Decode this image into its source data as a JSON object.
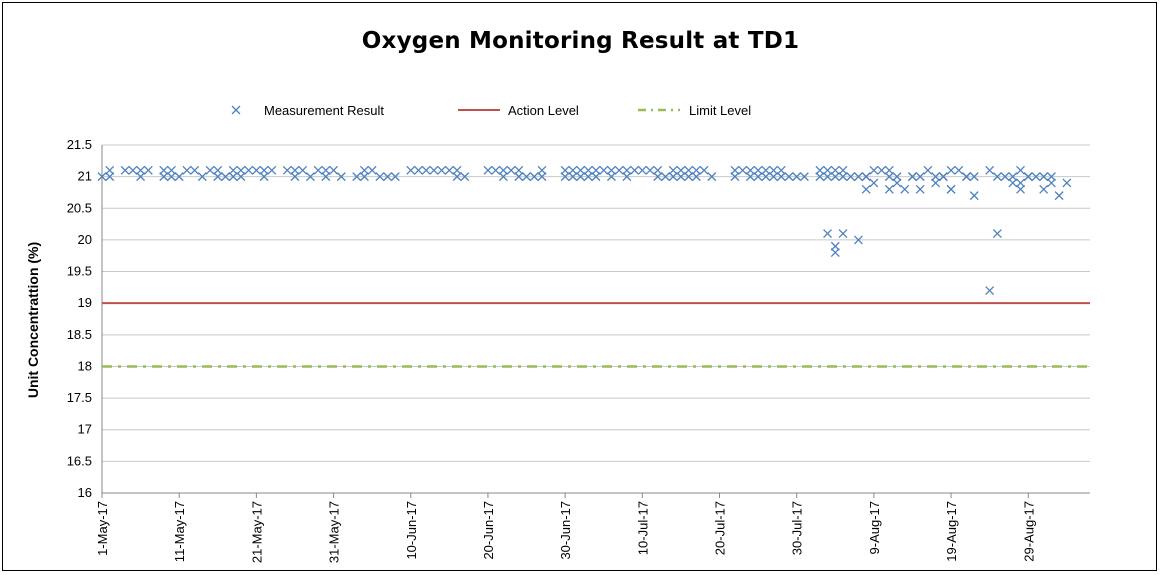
{
  "chart_data": {
    "type": "scatter",
    "title": "Oxygen Monitoring Result at TD1",
    "xlabel": "",
    "ylabel": "Unit Concentrattion (%)",
    "ylim": [
      16,
      21.5
    ],
    "yticks": [
      "16",
      "16.5",
      "17",
      "17.5",
      "18",
      "18.5",
      "19",
      "19.5",
      "20",
      "20.5",
      "21",
      "21.5"
    ],
    "xlim": [
      "1-May-17",
      "6-Sep-17"
    ],
    "xticks": [
      "1-May-17",
      "11-May-17",
      "21-May-17",
      "31-May-17",
      "10-Jun-17",
      "20-Jun-17",
      "30-Jun-17",
      "10-Jul-17",
      "20-Jul-17",
      "30-Jul-17",
      "9-Aug-17",
      "19-Aug-17",
      "29-Aug-17"
    ],
    "grid": true,
    "legend_position": "top",
    "colors": {
      "measurement": "#4f81bd",
      "action": "#c0504d",
      "limit": "#9bbb59"
    },
    "series": [
      {
        "name": "Measurement Result",
        "marker": "x",
        "points": [
          [
            "1-May-17",
            21.0
          ],
          [
            "2-May-17",
            21.1
          ],
          [
            "2-May-17",
            21.0
          ],
          [
            "4-May-17",
            21.1
          ],
          [
            "5-May-17",
            21.1
          ],
          [
            "6-May-17",
            21.0
          ],
          [
            "6-May-17",
            21.1
          ],
          [
            "7-May-17",
            21.1
          ],
          [
            "9-May-17",
            21.0
          ],
          [
            "9-May-17",
            21.1
          ],
          [
            "10-May-17",
            21.0
          ],
          [
            "10-May-17",
            21.1
          ],
          [
            "11-May-17",
            21.0
          ],
          [
            "12-May-17",
            21.1
          ],
          [
            "13-May-17",
            21.1
          ],
          [
            "14-May-17",
            21.0
          ],
          [
            "15-May-17",
            21.1
          ],
          [
            "16-May-17",
            21.1
          ],
          [
            "16-May-17",
            21.0
          ],
          [
            "17-May-17",
            21.0
          ],
          [
            "18-May-17",
            21.0
          ],
          [
            "18-May-17",
            21.1
          ],
          [
            "19-May-17",
            21.0
          ],
          [
            "19-May-17",
            21.1
          ],
          [
            "20-May-17",
            21.1
          ],
          [
            "21-May-17",
            21.1
          ],
          [
            "22-May-17",
            21.1
          ],
          [
            "22-May-17",
            21.0
          ],
          [
            "23-May-17",
            21.1
          ],
          [
            "25-May-17",
            21.1
          ],
          [
            "26-May-17",
            21.1
          ],
          [
            "26-May-17",
            21.0
          ],
          [
            "27-May-17",
            21.1
          ],
          [
            "28-May-17",
            21.0
          ],
          [
            "29-May-17",
            21.1
          ],
          [
            "30-May-17",
            21.1
          ],
          [
            "30-May-17",
            21.0
          ],
          [
            "31-May-17",
            21.1
          ],
          [
            "1-Jun-17",
            21.0
          ],
          [
            "3-Jun-17",
            21.0
          ],
          [
            "4-Jun-17",
            21.1
          ],
          [
            "4-Jun-17",
            21.0
          ],
          [
            "5-Jun-17",
            21.1
          ],
          [
            "6-Jun-17",
            21.0
          ],
          [
            "7-Jun-17",
            21.0
          ],
          [
            "8-Jun-17",
            21.0
          ],
          [
            "10-Jun-17",
            21.1
          ],
          [
            "11-Jun-17",
            21.1
          ],
          [
            "12-Jun-17",
            21.1
          ],
          [
            "13-Jun-17",
            21.1
          ],
          [
            "14-Jun-17",
            21.1
          ],
          [
            "15-Jun-17",
            21.1
          ],
          [
            "16-Jun-17",
            21.0
          ],
          [
            "16-Jun-17",
            21.1
          ],
          [
            "17-Jun-17",
            21.0
          ],
          [
            "20-Jun-17",
            21.1
          ],
          [
            "21-Jun-17",
            21.1
          ],
          [
            "22-Jun-17",
            21.1
          ],
          [
            "22-Jun-17",
            21.0
          ],
          [
            "23-Jun-17",
            21.1
          ],
          [
            "24-Jun-17",
            21.0
          ],
          [
            "24-Jun-17",
            21.1
          ],
          [
            "25-Jun-17",
            21.0
          ],
          [
            "26-Jun-17",
            21.0
          ],
          [
            "27-Jun-17",
            21.1
          ],
          [
            "27-Jun-17",
            21.0
          ],
          [
            "30-Jun-17",
            21.1
          ],
          [
            "30-Jun-17",
            21.0
          ],
          [
            "1-Jul-17",
            21.1
          ],
          [
            "1-Jul-17",
            21.0
          ],
          [
            "2-Jul-17",
            21.1
          ],
          [
            "2-Jul-17",
            21.0
          ],
          [
            "3-Jul-17",
            21.1
          ],
          [
            "3-Jul-17",
            21.0
          ],
          [
            "4-Jul-17",
            21.1
          ],
          [
            "4-Jul-17",
            21.0
          ],
          [
            "5-Jul-17",
            21.1
          ],
          [
            "6-Jul-17",
            21.0
          ],
          [
            "6-Jul-17",
            21.1
          ],
          [
            "7-Jul-17",
            21.1
          ],
          [
            "8-Jul-17",
            21.1
          ],
          [
            "8-Jul-17",
            21.0
          ],
          [
            "9-Jul-17",
            21.1
          ],
          [
            "10-Jul-17",
            21.1
          ],
          [
            "11-Jul-17",
            21.1
          ],
          [
            "12-Jul-17",
            21.1
          ],
          [
            "12-Jul-17",
            21.0
          ],
          [
            "13-Jul-17",
            21.0
          ],
          [
            "14-Jul-17",
            21.0
          ],
          [
            "14-Jul-17",
            21.1
          ],
          [
            "15-Jul-17",
            21.1
          ],
          [
            "15-Jul-17",
            21.0
          ],
          [
            "16-Jul-17",
            21.1
          ],
          [
            "16-Jul-17",
            21.0
          ],
          [
            "17-Jul-17",
            21.1
          ],
          [
            "17-Jul-17",
            21.0
          ],
          [
            "18-Jul-17",
            21.1
          ],
          [
            "19-Jul-17",
            21.0
          ],
          [
            "22-Jul-17",
            21.1
          ],
          [
            "22-Jul-17",
            21.0
          ],
          [
            "23-Jul-17",
            21.1
          ],
          [
            "24-Jul-17",
            21.1
          ],
          [
            "25-Jul-17",
            21.1
          ],
          [
            "26-Jul-17",
            21.0
          ],
          [
            "27-Jul-17",
            21.0
          ],
          [
            "28-Jul-17",
            21.0
          ],
          [
            "24-Jul-17",
            21.0
          ],
          [
            "25-Jul-17",
            21.0
          ],
          [
            "26-Jul-17",
            21.1
          ],
          [
            "27-Jul-17",
            21.1
          ],
          [
            "28-Jul-17",
            21.1
          ],
          [
            "29-Jul-17",
            21.0
          ],
          [
            "30-Jul-17",
            21.0
          ],
          [
            "31-Jul-17",
            21.0
          ],
          [
            "2-Aug-17",
            21.1
          ],
          [
            "2-Aug-17",
            21.0
          ],
          [
            "3-Aug-17",
            21.1
          ],
          [
            "3-Aug-17",
            21.0
          ],
          [
            "4-Aug-17",
            21.1
          ],
          [
            "4-Aug-17",
            21.0
          ],
          [
            "5-Aug-17",
            21.1
          ],
          [
            "5-Aug-17",
            21.0
          ],
          [
            "6-Aug-17",
            21.0
          ],
          [
            "7-Aug-17",
            21.0
          ],
          [
            "8-Aug-17",
            21.0
          ],
          [
            "9-Aug-17",
            21.1
          ],
          [
            "10-Aug-17",
            21.1
          ],
          [
            "11-Aug-17",
            21.0
          ],
          [
            "11-Aug-17",
            21.1
          ],
          [
            "12-Aug-17",
            21.0
          ],
          [
            "14-Aug-17",
            21.0
          ],
          [
            "15-Aug-17",
            21.0
          ],
          [
            "16-Aug-17",
            21.1
          ],
          [
            "17-Aug-17",
            21.0
          ],
          [
            "18-Aug-17",
            21.0
          ],
          [
            "19-Aug-17",
            21.1
          ],
          [
            "20-Aug-17",
            21.1
          ],
          [
            "21-Aug-17",
            21.0
          ],
          [
            "22-Aug-17",
            21.0
          ],
          [
            "24-Aug-17",
            21.1
          ],
          [
            "25-Aug-17",
            21.0
          ],
          [
            "26-Aug-17",
            21.0
          ],
          [
            "27-Aug-17",
            21.0
          ],
          [
            "28-Aug-17",
            21.1
          ],
          [
            "29-Aug-17",
            21.0
          ],
          [
            "30-Aug-17",
            21.0
          ],
          [
            "31-Aug-17",
            21.0
          ],
          [
            "3-Aug-17",
            20.1
          ],
          [
            "4-Aug-17",
            19.9
          ],
          [
            "4-Aug-17",
            19.8
          ],
          [
            "5-Aug-17",
            20.1
          ],
          [
            "7-Aug-17",
            20.0
          ],
          [
            "8-Aug-17",
            21.0
          ],
          [
            "8-Aug-17",
            20.8
          ],
          [
            "9-Aug-17",
            20.9
          ],
          [
            "11-Aug-17",
            20.8
          ],
          [
            "12-Aug-17",
            20.9
          ],
          [
            "13-Aug-17",
            20.8
          ],
          [
            "14-Aug-17",
            21.0
          ],
          [
            "15-Aug-17",
            20.8
          ],
          [
            "17-Aug-17",
            20.9
          ],
          [
            "18-Aug-17",
            21.0
          ],
          [
            "19-Aug-17",
            20.8
          ],
          [
            "19-Aug-17",
            20.8
          ],
          [
            "21-Aug-17",
            21.0
          ],
          [
            "22-Aug-17",
            20.7
          ],
          [
            "24-Aug-17",
            19.2
          ],
          [
            "25-Aug-17",
            20.1
          ],
          [
            "27-Aug-17",
            20.9
          ],
          [
            "28-Aug-17",
            20.9
          ],
          [
            "28-Aug-17",
            20.8
          ],
          [
            "29-Aug-17",
            21.0
          ],
          [
            "31-Aug-17",
            20.8
          ],
          [
            "1-Sep-17",
            20.9
          ],
          [
            "2-Sep-17",
            20.7
          ],
          [
            "3-Sep-17",
            20.9
          ],
          [
            "1-Sep-17",
            21.0
          ]
        ]
      },
      {
        "name": "Action Level",
        "line": "solid",
        "value": 19
      },
      {
        "name": "Limit Level",
        "line": "dash-dot",
        "value": 18
      }
    ]
  }
}
